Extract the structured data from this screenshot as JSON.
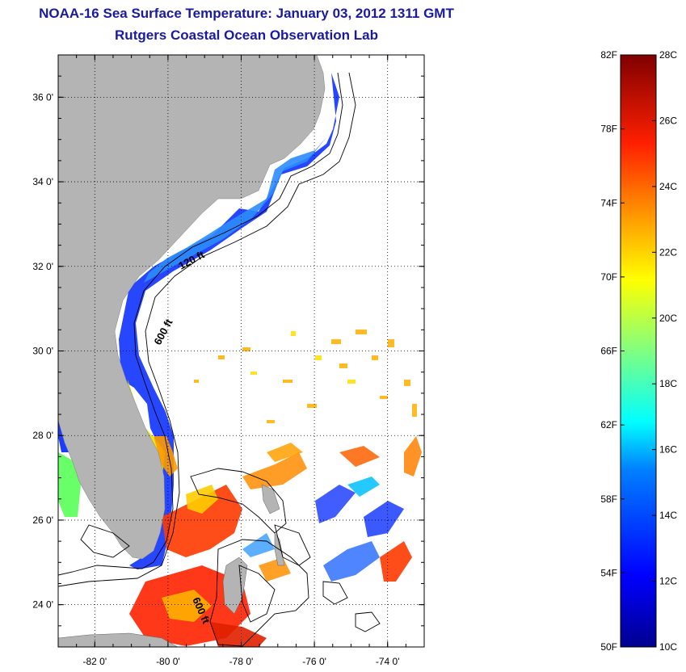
{
  "header": {
    "title": "NOAA-16 Sea Surface Temperature:  January 03, 2012 1311 GMT",
    "subtitle": "Rutgers Coastal Ocean Observation Lab"
  },
  "map": {
    "lon_range": [
      -83,
      -73
    ],
    "lat_range": [
      23,
      37
    ],
    "lat_ticks": [
      {
        "value": 36,
        "label": "36 0'"
      },
      {
        "value": 34,
        "label": "34 0'"
      },
      {
        "value": 32,
        "label": "32 0'"
      },
      {
        "value": 30,
        "label": "30 0'"
      },
      {
        "value": 28,
        "label": "28 0'"
      },
      {
        "value": 26,
        "label": "26 0'"
      },
      {
        "value": 24,
        "label": "24 0'"
      }
    ],
    "lon_ticks": [
      {
        "value": -82,
        "label": "-82 0'"
      },
      {
        "value": -80,
        "label": "-80 0'"
      },
      {
        "value": -78,
        "label": "-78 0'"
      },
      {
        "value": -76,
        "label": "-76 0'"
      },
      {
        "value": -74,
        "label": "-74 0'"
      }
    ],
    "contour_labels": [
      "120 ft",
      "600 ft",
      "600 ft"
    ],
    "colors": {
      "land": "#b4b4b4",
      "ocean": "#ffffff",
      "grid": "#000000"
    }
  },
  "colorbar": {
    "range_c": [
      10,
      28
    ],
    "range_f": [
      50,
      82
    ],
    "c_ticks": [
      {
        "value": 28,
        "label": "28C"
      },
      {
        "value": 26,
        "label": "26C"
      },
      {
        "value": 24,
        "label": "24C"
      },
      {
        "value": 22,
        "label": "22C"
      },
      {
        "value": 20,
        "label": "20C"
      },
      {
        "value": 18,
        "label": "18C"
      },
      {
        "value": 16,
        "label": "16C"
      },
      {
        "value": 14,
        "label": "14C"
      },
      {
        "value": 12,
        "label": "12C"
      },
      {
        "value": 10,
        "label": "10C"
      }
    ],
    "f_ticks": [
      {
        "value": 82,
        "label": "82F"
      },
      {
        "value": 78,
        "label": "78F"
      },
      {
        "value": 74,
        "label": "74F"
      },
      {
        "value": 70,
        "label": "70F"
      },
      {
        "value": 66,
        "label": "66F"
      },
      {
        "value": 62,
        "label": "62F"
      },
      {
        "value": 58,
        "label": "58F"
      },
      {
        "value": 54,
        "label": "54F"
      },
      {
        "value": 50,
        "label": "50F"
      }
    ]
  }
}
